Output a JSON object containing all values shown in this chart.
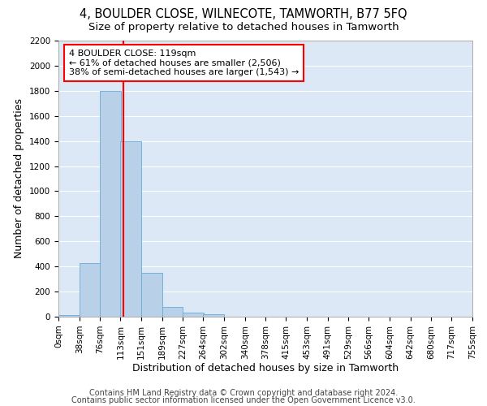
{
  "title": "4, BOULDER CLOSE, WILNECOTE, TAMWORTH, B77 5FQ",
  "subtitle": "Size of property relative to detached houses in Tamworth",
  "xlabel": "Distribution of detached houses by size in Tamworth",
  "ylabel": "Number of detached properties",
  "bar_color": "#b8d0e8",
  "bar_edge_color": "#6aaad4",
  "background_color": "#dce8f5",
  "grid_color": "#ffffff",
  "vline_color": "red",
  "vline_x": 119,
  "annotation_text": "4 BOULDER CLOSE: 119sqm\n← 61% of detached houses are smaller (2,506)\n38% of semi-detached houses are larger (1,543) →",
  "annotation_box_color": "white",
  "annotation_box_edge_color": "red",
  "bins": [
    0,
    38,
    76,
    113,
    151,
    189,
    227,
    264,
    302,
    340,
    378,
    415,
    453,
    491,
    529,
    566,
    604,
    642,
    680,
    717,
    755
  ],
  "bar_heights": [
    15,
    425,
    1800,
    1400,
    350,
    80,
    35,
    20,
    0,
    0,
    0,
    0,
    0,
    0,
    0,
    0,
    0,
    0,
    0,
    0
  ],
  "tick_labels": [
    "0sqm",
    "38sqm",
    "76sqm",
    "113sqm",
    "151sqm",
    "189sqm",
    "227sqm",
    "264sqm",
    "302sqm",
    "340sqm",
    "378sqm",
    "415sqm",
    "453sqm",
    "491sqm",
    "529sqm",
    "566sqm",
    "604sqm",
    "642sqm",
    "680sqm",
    "717sqm",
    "755sqm"
  ],
  "ylim": [
    0,
    2200
  ],
  "yticks": [
    0,
    200,
    400,
    600,
    800,
    1000,
    1200,
    1400,
    1600,
    1800,
    2000,
    2200
  ],
  "footer1": "Contains HM Land Registry data © Crown copyright and database right 2024.",
  "footer2": "Contains public sector information licensed under the Open Government Licence v3.0.",
  "title_fontsize": 10.5,
  "subtitle_fontsize": 9.5,
  "axis_label_fontsize": 9,
  "tick_fontsize": 7.5,
  "annotation_fontsize": 8,
  "footer_fontsize": 7
}
